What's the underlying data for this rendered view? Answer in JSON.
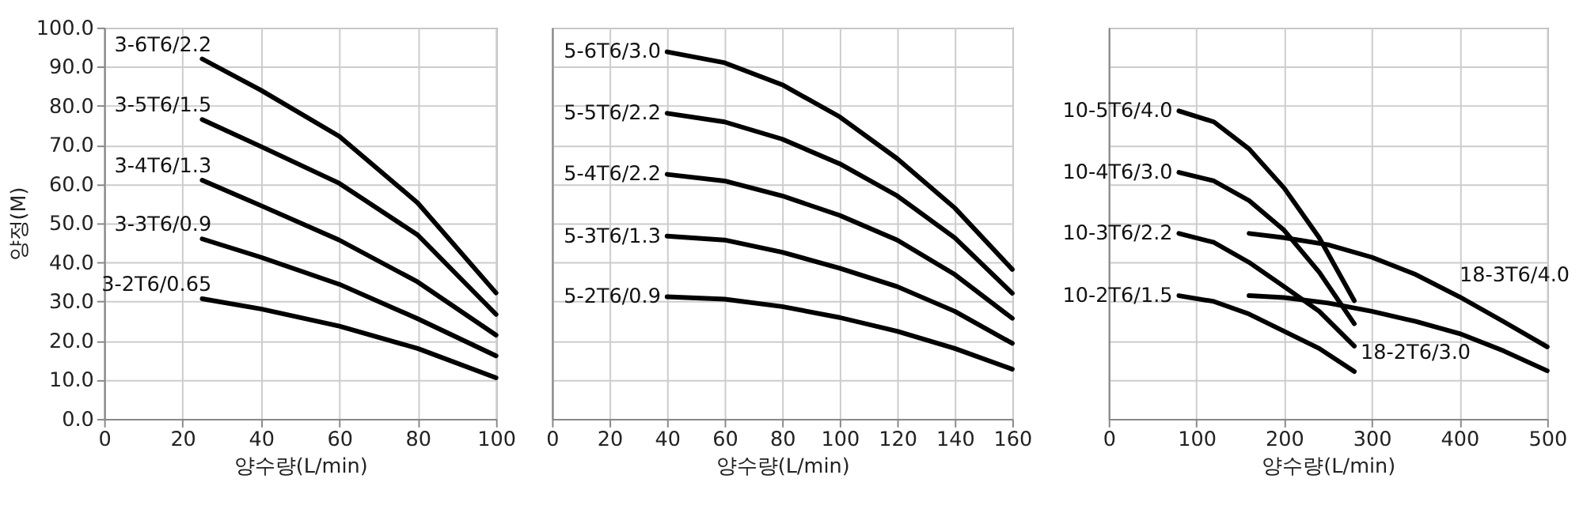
{
  "chart_data": [
    {
      "type": "line",
      "xlabel": "양수량(L/min)",
      "ylabel": "양정(M)",
      "xlim": [
        0,
        100
      ],
      "xticks": [
        0,
        20,
        40,
        60,
        80,
        100
      ],
      "ylim": [
        0,
        100
      ],
      "yticks": [
        {
          "value": 0,
          "label": "0.0"
        },
        {
          "value": 10,
          "label": "10.0"
        },
        {
          "value": 20,
          "label": "20.0"
        },
        {
          "value": 30,
          "label": "30.0"
        },
        {
          "value": 40,
          "label": "40.0"
        },
        {
          "value": 50,
          "label": "50.0"
        },
        {
          "value": 60,
          "label": "60.0"
        },
        {
          "value": 70,
          "label": "70.0"
        },
        {
          "value": 80,
          "label": "80.0"
        },
        {
          "value": 90,
          "label": "90.0"
        },
        {
          "value": 100,
          "label": "100.0"
        }
      ],
      "grid": true,
      "line_style": "solid",
      "series": [
        {
          "name": "3-6T6/2.2",
          "color": "#000000",
          "x": [
            25,
            40,
            60,
            80,
            100
          ],
          "values": [
            92,
            84,
            72.2,
            55.2,
            32.2
          ]
        },
        {
          "name": "3-5T6/1.5",
          "color": "#000000",
          "x": [
            25,
            40,
            60,
            80,
            100
          ],
          "values": [
            76.5,
            69.6,
            60.2,
            47,
            26.7
          ]
        },
        {
          "name": "3-4T6/1.3",
          "color": "#000000",
          "x": [
            25,
            40,
            60,
            80,
            100
          ],
          "values": [
            61,
            54.5,
            45.7,
            35,
            21.4
          ]
        },
        {
          "name": "3-3T6/0.9",
          "color": "#000000",
          "x": [
            25,
            40,
            60,
            80,
            100
          ],
          "values": [
            46,
            41.3,
            34.4,
            25.6,
            16.1
          ]
        },
        {
          "name": "3-2T6/0.65",
          "color": "#000000",
          "x": [
            25,
            40,
            60,
            80,
            100
          ],
          "values": [
            30.7,
            28.1,
            23.7,
            18,
            10.5
          ]
        }
      ]
    },
    {
      "type": "line",
      "xlabel": "양수량(L/min)",
      "xlim": [
        0,
        160
      ],
      "xticks": [
        0,
        20,
        40,
        60,
        80,
        100,
        120,
        140,
        160
      ],
      "ylim": [
        0,
        100
      ],
      "yticks": [
        0,
        10,
        20,
        30,
        40,
        50,
        60,
        70,
        80,
        90,
        100
      ],
      "tick_labels": "x",
      "grid": true,
      "line_style": "solid",
      "series": [
        {
          "name": "5-6T6/3.0",
          "color": "#000000",
          "x": [
            40,
            60,
            80,
            100,
            120,
            140,
            160
          ],
          "values": [
            93.8,
            91,
            85.4,
            77.2,
            66.5,
            53.9,
            38.2
          ]
        },
        {
          "name": "5-5T6/2.2",
          "color": "#000000",
          "x": [
            40,
            60,
            80,
            100,
            120,
            140,
            160
          ],
          "values": [
            78.1,
            75.9,
            71.5,
            65.2,
            57,
            46.3,
            32.1
          ]
        },
        {
          "name": "5-4T6/2.2",
          "color": "#000000",
          "x": [
            40,
            60,
            80,
            100,
            120,
            140,
            160
          ],
          "values": [
            62.5,
            60.8,
            57,
            52,
            45.7,
            36.9,
            25.7
          ]
        },
        {
          "name": "5-3T6/1.3",
          "color": "#000000",
          "x": [
            40,
            60,
            80,
            100,
            120,
            140,
            160
          ],
          "values": [
            46.7,
            45.7,
            42.6,
            38.5,
            33.8,
            27.5,
            19.3
          ]
        },
        {
          "name": "5-2T6/0.9",
          "color": "#000000",
          "x": [
            40,
            60,
            80,
            100,
            120,
            140,
            160
          ],
          "values": [
            31.2,
            30.6,
            28.7,
            25.9,
            22.4,
            18,
            12.7
          ]
        }
      ]
    },
    {
      "type": "line",
      "xlabel": "양수량(L/min)",
      "xlim": [
        0,
        500
      ],
      "xticks": [
        0,
        100,
        200,
        300,
        400,
        500
      ],
      "ylim": [
        0,
        100
      ],
      "yticks": [
        0,
        10,
        20,
        30,
        40,
        50,
        60,
        70,
        80,
        90,
        100
      ],
      "tick_labels": "x",
      "grid": true,
      "line_style": "solid",
      "series": [
        {
          "name": "10-5T6/4.0",
          "color": "#000000",
          "x": [
            80,
            120,
            160,
            200,
            240,
            280
          ],
          "values": [
            78.7,
            75.9,
            69,
            59,
            46.3,
            30.2
          ]
        },
        {
          "name": "10-4T6/3.0",
          "color": "#000000",
          "x": [
            80,
            120,
            160,
            200,
            240,
            280
          ],
          "values": [
            63,
            60.8,
            55.8,
            48.2,
            37.5,
            24.3
          ]
        },
        {
          "name": "10-3T6/2.2",
          "color": "#000000",
          "x": [
            80,
            120,
            160,
            200,
            240,
            280
          ],
          "values": [
            47.4,
            45.1,
            40,
            33.8,
            27.5,
            18.6
          ]
        },
        {
          "name": "10-2T6/1.5",
          "color": "#000000",
          "x": [
            80,
            120,
            160,
            200,
            240,
            280
          ],
          "values": [
            31.5,
            30,
            26.8,
            22.4,
            18,
            12.1
          ]
        },
        {
          "name": "18-3T6/4.0",
          "color": "#000000",
          "x": [
            160,
            200,
            250,
            300,
            350,
            400,
            450,
            500
          ],
          "values": [
            47.4,
            46.3,
            44.5,
            41.3,
            36.9,
            31.2,
            24.9,
            18.4
          ]
        },
        {
          "name": "18-2T6/3.0",
          "color": "#000000",
          "x": [
            160,
            200,
            250,
            300,
            350,
            400,
            450,
            500
          ],
          "values": [
            31.5,
            31,
            29.6,
            27.5,
            24.9,
            21.8,
            17.4,
            12.3
          ]
        }
      ]
    }
  ]
}
